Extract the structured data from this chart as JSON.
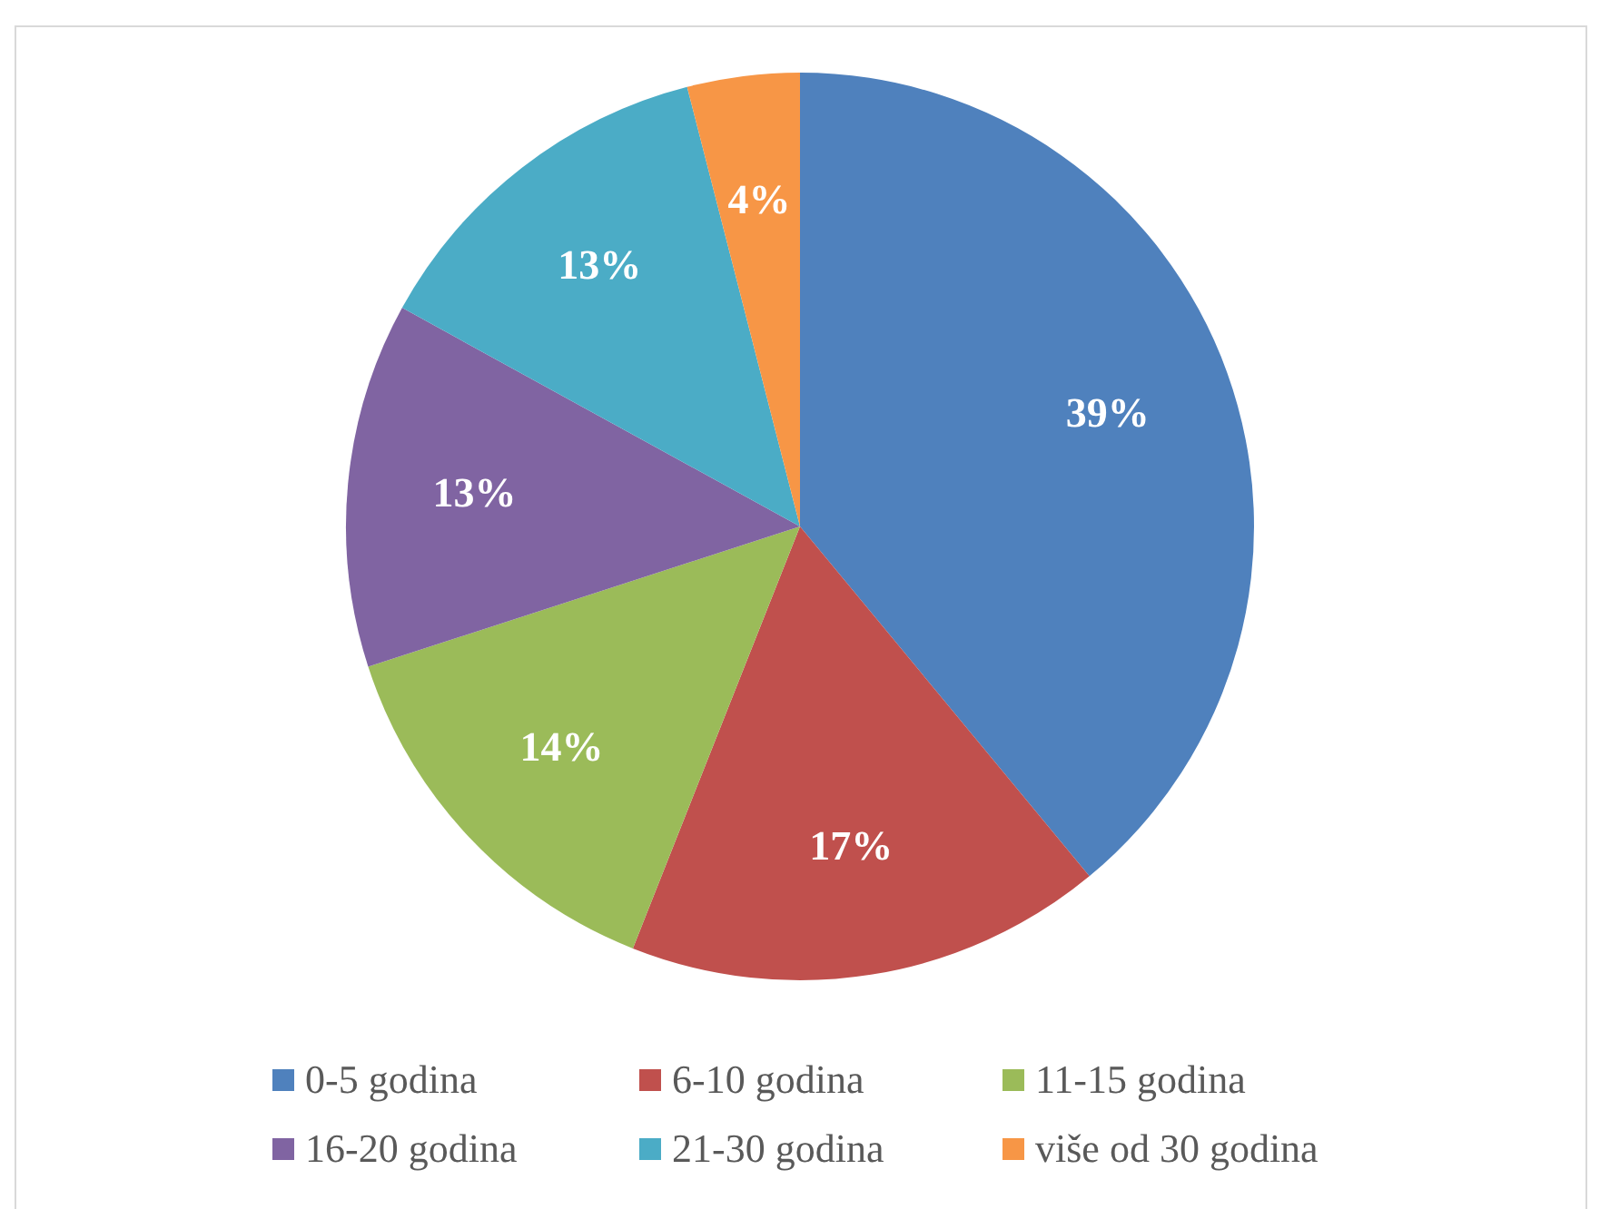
{
  "chart_data": {
    "type": "pie",
    "categories": [
      "0-5 godina",
      "6-10 godina",
      "11-15 godina",
      "16-20 godina",
      "21-30 godina",
      "više od 30 godina"
    ],
    "values": [
      39,
      17,
      14,
      13,
      13,
      4
    ],
    "colors": [
      "#4f81bd",
      "#c0504d",
      "#9bbb59",
      "#8064a2",
      "#4bacc6",
      "#f79646"
    ],
    "value_labels": [
      "39%",
      "17%",
      "14%",
      "13%",
      "13%",
      "4%"
    ],
    "legend": "bottom"
  }
}
